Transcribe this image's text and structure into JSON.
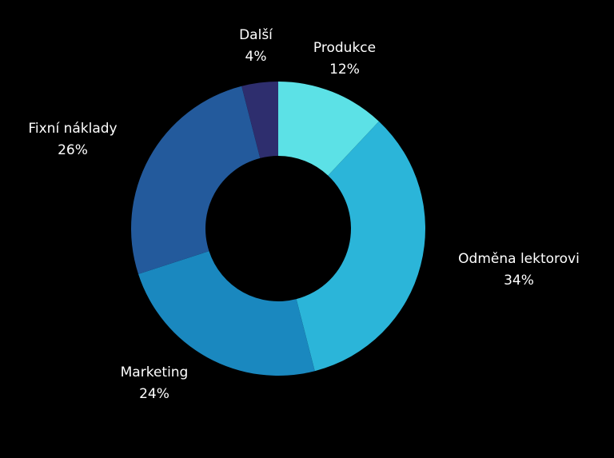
{
  "chart_data": {
    "type": "pie",
    "variant": "donut",
    "title": "",
    "categories": [
      "Produkce",
      "Odměna lektorovi",
      "Marketing",
      "Fixní náklady",
      "Další"
    ],
    "values": [
      12,
      34,
      24,
      26,
      4
    ],
    "labels": [
      {
        "name": "Produkce",
        "value": "12%"
      },
      {
        "name": "Odměna lektorovi",
        "value": "34%"
      },
      {
        "name": "Marketing",
        "value": "24%"
      },
      {
        "name": "Fixní náklady",
        "value": "26%"
      },
      {
        "name": "Další",
        "value": "4%"
      }
    ],
    "colors": [
      "#5ce1e6",
      "#2bb5d9",
      "#1a88bf",
      "#235a9c",
      "#2e2e6e"
    ],
    "start": "12 o'clock",
    "direction": "clockwise",
    "legend": "none",
    "background": "#000000"
  }
}
